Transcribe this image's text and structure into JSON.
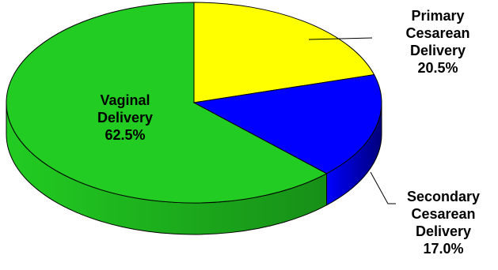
{
  "chart_data": {
    "type": "pie",
    "style": "3d",
    "slices": [
      {
        "label_lines": [
          "Vaginal",
          "Delivery"
        ],
        "value_label": "62.5%",
        "value": 62.5,
        "color": "#22cc22",
        "side_color": "#178f17"
      },
      {
        "label_lines": [
          "Primary",
          "Cesarean",
          "Delivery"
        ],
        "value_label": "20.5%",
        "value": 20.5,
        "color": "#ffff00",
        "side_color": "#b3b300"
      },
      {
        "label_lines": [
          "Secondary",
          "Cesarean",
          "Delivery"
        ],
        "value_label": "17.0%",
        "value": 17.0,
        "color": "#0000ff",
        "side_color": "#00007a"
      }
    ]
  }
}
